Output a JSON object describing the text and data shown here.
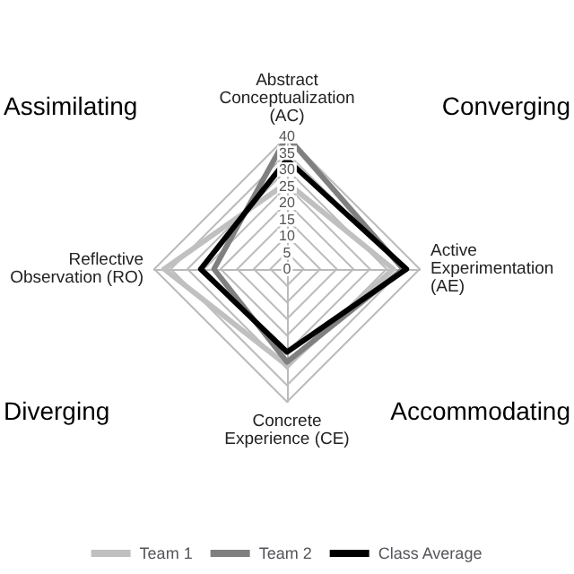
{
  "chart_data": {
    "type": "radar",
    "categories": [
      "Abstract Conceptualization (AC)",
      "Active Experimentation (AE)",
      "Concrete Experience (CE)",
      "Reflective Observation (RO)"
    ],
    "series": [
      {
        "name": "Team 1",
        "color": "#c0c0c0",
        "values": [
          26,
          32,
          29,
          37
        ]
      },
      {
        "name": "Team 2",
        "color": "#808080",
        "values": [
          40,
          35,
          28,
          22
        ]
      },
      {
        "name": "Class Average",
        "color": "#000000",
        "values": [
          33,
          36,
          25,
          26
        ]
      }
    ],
    "ylim": [
      0,
      40
    ],
    "yticks": [
      0,
      5,
      10,
      15,
      20,
      25,
      30,
      35,
      40
    ],
    "annotations": [
      "Assimilating",
      "Converging",
      "Diverging",
      "Accommodating"
    ],
    "legend": "bottom",
    "grid": true,
    "marker": "none",
    "line_style": "solid"
  }
}
